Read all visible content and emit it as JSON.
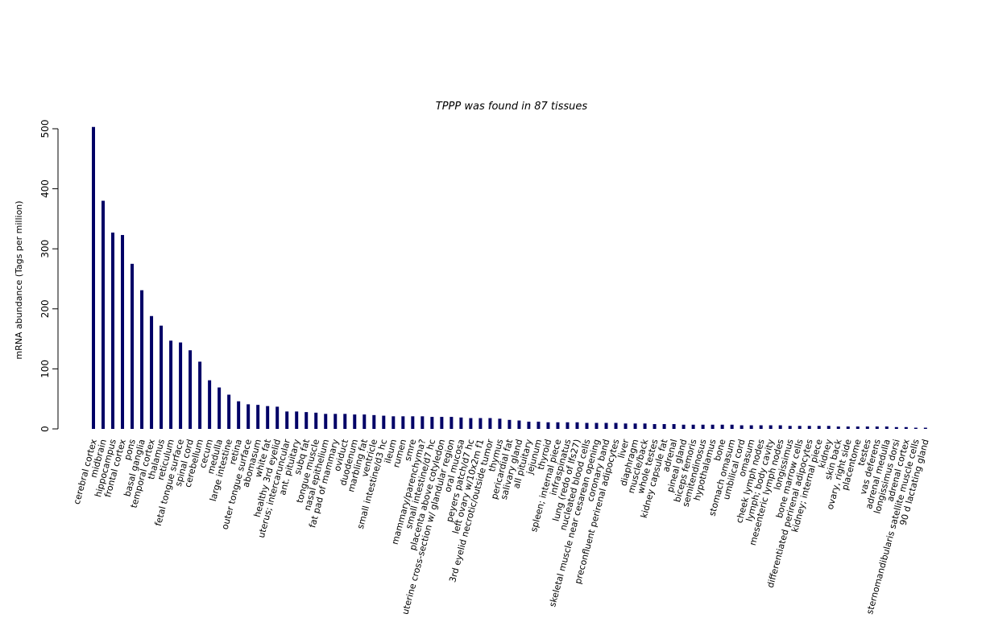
{
  "chart_data": {
    "type": "bar",
    "title": "TPPP  was found in  87  tissues",
    "xlabel": "",
    "ylabel": "mRNA abundance (Tags per million)",
    "ylim": [
      0,
      500
    ],
    "yticks": [
      0,
      100,
      200,
      300,
      400,
      500
    ],
    "grid": false,
    "bar_color": "#000066",
    "categories": [
      "cerebral cortex",
      "midbrain",
      "hippocampus",
      "frontal cortex",
      "pons",
      "basal ganglia",
      "temporal cortex",
      "thalamus",
      "reticulum",
      "fetal tongue surface",
      "spinal cord",
      "cerebellum",
      "cecum",
      "medulla",
      "large intestine",
      "retina",
      "outer tongue surface",
      "abomasum",
      "white fat",
      "healthy 3rd eyelid",
      "uterus; intercaruncular",
      "ant. pituitary",
      "subq fat",
      "tongue muscle",
      "nasal epithelium",
      "fat pad of mammary",
      "oviduct",
      "duodenum",
      "marbling fat",
      "ventricle",
      "small intestine/d3 hc",
      "ileum",
      "rumen",
      "smre",
      "mammary/parenchyma?",
      "small intestine/d7 hc",
      "placenta above cotyledon",
      "uterine cross-section w/ glandular region",
      "oral mucosa",
      "peyers patch/d7 hc",
      "left ovary w/10x2m f1",
      "3rd eyelid necrotic/outside tumor",
      "thymus",
      "pericardial fat",
      "salivary gland",
      "all pituitary",
      "jejunum",
      "thyroid",
      "spleen; internal piece",
      "infraspinatus",
      "lung (redo of lfs27)",
      "nucleated blood cells",
      "skeletal muscle near cesarean opening",
      "coronary band",
      "preconfluent perirenal adipocytes",
      "liver",
      "diaphragm",
      "muscle/back",
      "whole testes",
      "kidney capsule fat",
      "adrenal",
      "pineal gland",
      "biceps femoris",
      "semitendinosus",
      "hypothalamus",
      "bone",
      "stomach omasum",
      "umbilical cord",
      "omasum",
      "cheek lymph nodes",
      "lymph; body cavity",
      "mesenteric lymph nodes",
      "longissimus",
      "bone marrow cells",
      "differentiated perirenal adipocytes",
      "kidney; internal piece",
      "kidney",
      "skin back",
      "ovary, right side",
      "placentome",
      "testes",
      "vas deferens",
      "adrenal medulla",
      "longissimus dorsi",
      "adrenal cortex",
      "sternomandibularis satellite muscle cells",
      "90 d lactating gland"
    ],
    "values": [
      503,
      380,
      327,
      323,
      275,
      231,
      188,
      172,
      147,
      144,
      131,
      112,
      81,
      69,
      57,
      46,
      41,
      40,
      38,
      37,
      29,
      29,
      28,
      27,
      25,
      25,
      25,
      24,
      24,
      23,
      22,
      21,
      21,
      21,
      21,
      20,
      20,
      20,
      19,
      18,
      18,
      18,
      17,
      15,
      14,
      12,
      12,
      11,
      11,
      11,
      11,
      10,
      10,
      10,
      10,
      9,
      9,
      9,
      8,
      8,
      8,
      7,
      7,
      7,
      7,
      7,
      7,
      6,
      6,
      6,
      6,
      6,
      5,
      5,
      5,
      5,
      5,
      4,
      4,
      4,
      4,
      4,
      4,
      3,
      3,
      2,
      2
    ]
  }
}
